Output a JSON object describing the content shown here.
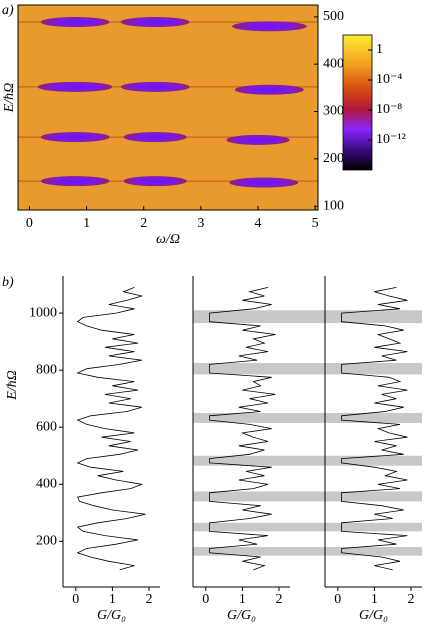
{
  "chart_data": [
    {
      "type": "heatmap",
      "panel_label": "a)",
      "xlabel": "ω/Ω",
      "ylabel": "E/ħΩ",
      "xlim": [
        -0.2,
        5.05
      ],
      "ylim": [
        92,
        525
      ],
      "xticks": [
        0,
        1,
        2,
        3,
        4,
        5
      ],
      "yticks": [
        100,
        200,
        300,
        400,
        500
      ],
      "y_axis_side": "right",
      "background": "#e99a2c",
      "spots": {
        "color": "#7418e8",
        "halfheight": 10,
        "x": [
          0.8,
          2.2,
          4.2,
          0.8,
          2.2,
          4.2,
          0.8,
          2.2,
          4.0,
          0.8,
          2.2,
          4.1
        ],
        "y": [
          489,
          489,
          480,
          352,
          352,
          346,
          246,
          246,
          240,
          153,
          153,
          150
        ],
        "halfwidth": [
          0.6,
          0.6,
          0.65,
          0.65,
          0.6,
          0.6,
          0.6,
          0.55,
          0.55,
          0.6,
          0.55,
          0.6
        ]
      },
      "colorbar": {
        "log": true,
        "lim": [
          1e-16,
          100
        ],
        "ticks": [
          1,
          {
            "value": 0.0001,
            "label": "10⁻⁴"
          },
          {
            "value": 1e-08,
            "label": "10⁻⁸"
          },
          {
            "value": 1e-12,
            "label": "10⁻¹²"
          }
        ]
      }
    },
    {
      "type": "line",
      "panel_label": "b)",
      "xlabel": "G/G₀",
      "ylabel": "E/ħΩ",
      "xlim": [
        -0.35,
        2.3
      ],
      "ylim": [
        40,
        1130
      ],
      "xticks": [
        0,
        1,
        2
      ],
      "yticks": [
        200,
        400,
        600,
        800,
        1000
      ],
      "band_color": "#c8c8c8",
      "bands": [
        [
          150,
          180
        ],
        [
          235,
          265
        ],
        [
          340,
          375
        ],
        [
          465,
          500
        ],
        [
          615,
          650
        ],
        [
          785,
          825
        ],
        [
          965,
          1010
        ]
      ],
      "energy": [
        100,
        115,
        130,
        145,
        160,
        175,
        190,
        205,
        220,
        235,
        250,
        265,
        280,
        295,
        310,
        325,
        340,
        355,
        370,
        385,
        400,
        415,
        430,
        445,
        460,
        475,
        490,
        505,
        520,
        535,
        550,
        565,
        580,
        595,
        610,
        625,
        640,
        655,
        670,
        685,
        700,
        715,
        730,
        745,
        760,
        775,
        790,
        805,
        820,
        835,
        850,
        865,
        880,
        895,
        910,
        925,
        940,
        955,
        970,
        985,
        1000,
        1015,
        1030,
        1045,
        1060,
        1075,
        1090
      ],
      "series": [
        {
          "color": "#000000",
          "values": [
            1.2,
            1.6,
            0.9,
            0.4,
            0.05,
            0.3,
            1.1,
            1.7,
            0.8,
            0.2,
            0.05,
            0.6,
            1.4,
            1.9,
            1.0,
            0.5,
            0.1,
            0.05,
            0.7,
            1.5,
            1.8,
            1.1,
            0.6,
            1.3,
            0.4,
            0.05,
            0.3,
            1.2,
            1.7,
            0.9,
            1.5,
            0.7,
            1.6,
            0.8,
            0.3,
            0.05,
            0.4,
            1.4,
            1.8,
            0.9,
            1.5,
            0.8,
            1.7,
            1.0,
            1.6,
            0.6,
            0.05,
            0.3,
            1.2,
            1.8,
            0.9,
            1.6,
            0.8,
            1.7,
            1.0,
            1.6,
            0.7,
            0.3,
            0.05,
            0.2,
            1.1,
            1.6,
            0.9,
            1.4,
            1.8,
            1.3,
            1.6
          ]
        },
        {
          "color": "#000000",
          "values": [
            1.3,
            1.6,
            1.0,
            1.5,
            0.1,
            0.1,
            1.4,
            0.9,
            1.7,
            0.1,
            0.1,
            0.1,
            1.2,
            1.8,
            1.0,
            1.5,
            0.1,
            0.1,
            0.1,
            1.3,
            1.7,
            0.9,
            1.6,
            1.1,
            1.8,
            0.1,
            0.1,
            1.2,
            1.6,
            0.9,
            1.7,
            1.3,
            1.0,
            1.8,
            1.2,
            0.1,
            0.1,
            1.5,
            0.9,
            1.7,
            1.2,
            1.9,
            1.0,
            1.5,
            1.3,
            1.8,
            0.1,
            0.1,
            0.1,
            1.4,
            0.9,
            1.7,
            1.1,
            1.6,
            1.3,
            1.9,
            1.0,
            1.5,
            0.1,
            0.1,
            0.1,
            1.3,
            1.8,
            1.0,
            1.6,
            1.2,
            1.7
          ]
        },
        {
          "color": "#000000",
          "values": [
            1.5,
            1.0,
            1.7,
            1.2,
            0.1,
            0.1,
            1.6,
            1.1,
            1.9,
            0.1,
            0.1,
            0.1,
            1.5,
            1.0,
            1.8,
            1.2,
            0.1,
            0.1,
            0.1,
            1.7,
            1.1,
            1.9,
            1.3,
            1.6,
            1.0,
            0.1,
            0.1,
            1.8,
            1.2,
            1.6,
            1.0,
            1.9,
            1.4,
            1.1,
            1.7,
            0.1,
            0.1,
            1.3,
            1.8,
            1.0,
            1.6,
            1.2,
            1.9,
            1.1,
            1.7,
            1.4,
            0.1,
            0.1,
            0.1,
            1.6,
            1.2,
            1.9,
            1.0,
            1.7,
            1.4,
            1.1,
            1.8,
            1.3,
            0.1,
            0.1,
            0.1,
            1.7,
            1.1,
            1.9,
            1.4,
            1.0,
            1.6
          ]
        }
      ]
    }
  ]
}
